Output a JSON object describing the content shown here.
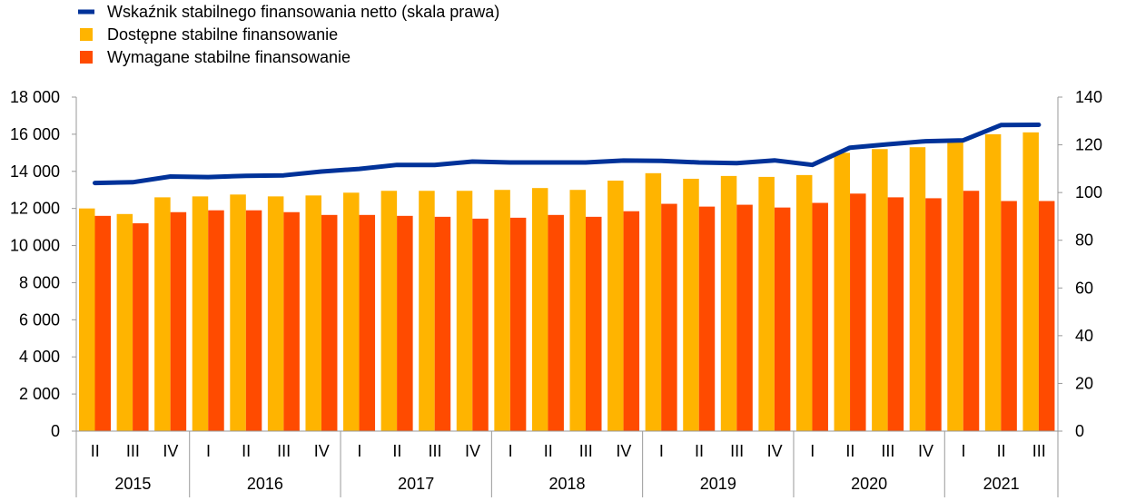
{
  "chart_data": {
    "type": "bar",
    "legend": {
      "placement": "top-left",
      "items": [
        {
          "label": "Wskaźnik stabilnego finansowania netto (skala prawa)",
          "color": "#003299",
          "marker": "line"
        },
        {
          "label": "Dostępne stabilne finansowanie",
          "color": "#FFB400",
          "marker": "square"
        },
        {
          "label": "Wymagane stabilne finansowanie",
          "color": "#FF4B00",
          "marker": "square"
        }
      ]
    },
    "categories": [
      "II",
      "III",
      "IV",
      "I",
      "II",
      "III",
      "IV",
      "I",
      "II",
      "III",
      "IV",
      "I",
      "II",
      "III",
      "IV",
      "I",
      "II",
      "III",
      "IV",
      "I",
      "II",
      "III",
      "IV",
      "I",
      "II",
      "III"
    ],
    "years": [
      {
        "label": "2015",
        "count": 3
      },
      {
        "label": "2016",
        "count": 4
      },
      {
        "label": "2017",
        "count": 4
      },
      {
        "label": "2018",
        "count": 4
      },
      {
        "label": "2019",
        "count": 4
      },
      {
        "label": "2020",
        "count": 4
      },
      {
        "label": "2021",
        "count": 3
      }
    ],
    "series": [
      {
        "name": "Dostępne stabilne finansowanie",
        "type": "bar",
        "axis": "left",
        "color": "#FFB400",
        "values": [
          12000,
          11700,
          12600,
          12650,
          12750,
          12650,
          12700,
          12850,
          12950,
          12950,
          12950,
          13000,
          13100,
          13000,
          13500,
          13900,
          13600,
          13750,
          13700,
          13800,
          15000,
          15200,
          15300,
          15700,
          16000,
          16100
        ]
      },
      {
        "name": "Wymagane stabilne finansowanie",
        "type": "bar",
        "axis": "left",
        "color": "#FF4B00",
        "values": [
          11600,
          11200,
          11800,
          11900,
          11900,
          11800,
          11650,
          11650,
          11600,
          11550,
          11450,
          11500,
          11650,
          11550,
          11850,
          12250,
          12100,
          12200,
          12050,
          12300,
          12800,
          12600,
          12550,
          12950,
          12400,
          12400
        ]
      },
      {
        "name": "Wskaźnik stabilnego finansowania netto (skala prawa)",
        "type": "line",
        "axis": "right",
        "color": "#003299",
        "values": [
          104,
          104.3,
          106.7,
          106.5,
          107,
          107.2,
          108.8,
          109.9,
          111.6,
          111.6,
          113,
          112.6,
          112.6,
          112.6,
          113.4,
          113.3,
          112.6,
          112.3,
          113.5,
          111.6,
          118.8,
          120.2,
          121.5,
          121.9,
          128.3,
          128.4
        ]
      }
    ],
    "y_left": {
      "min": 0,
      "max": 18000,
      "step": 2000,
      "tick_labels": [
        "0",
        "2 000",
        "4 000",
        "6 000",
        "8 000",
        "10 000",
        "12 000",
        "14 000",
        "16 000",
        "18 000"
      ]
    },
    "y_right": {
      "min": 0,
      "max": 140,
      "step": 20,
      "tick_labels": [
        "0",
        "20",
        "40",
        "60",
        "80",
        "100",
        "120",
        "140"
      ]
    },
    "grid": false
  }
}
